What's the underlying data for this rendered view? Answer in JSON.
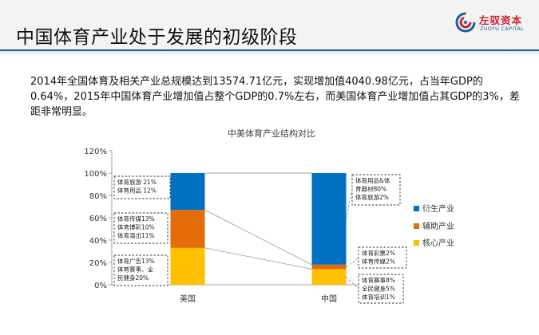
{
  "slide": {
    "title": "中国体育产业处于发展的初级阶段",
    "paragraph": "2014年全国体育及相关产业总规模达到13574.71亿元，实现增加值4040.98亿元，占当年GDP的0.64%，2015年中国体育产业增加值占整个GDP的0.7%左右，而美国体育产业增加值占其GDP的3%，差距非常明显。"
  },
  "logo": {
    "name_cn": "左驭资本",
    "name_en": "ZUOYU CAPITAL"
  },
  "chart_data": {
    "type": "bar",
    "stacked": true,
    "title": "中美体育产业结构对比",
    "categories": [
      "美国",
      "中国"
    ],
    "series": [
      {
        "name": "核心产业",
        "color": "#ffc000",
        "values": [
          33,
          14
        ]
      },
      {
        "name": "辅助产业",
        "color": "#e36c09",
        "values": [
          34,
          4
        ]
      },
      {
        "name": "衍生产业",
        "color": "#0070c0",
        "values": [
          33,
          82
        ]
      }
    ],
    "legend_order": [
      "衍生产业",
      "辅助产业",
      "核心产业"
    ],
    "legend_position": "right",
    "ylim": [
      0,
      120
    ],
    "yticks": [
      0,
      20,
      40,
      60,
      80,
      100,
      120
    ],
    "ytick_labels": [
      "0%",
      "20%",
      "40%",
      "60%",
      "80%",
      "100%",
      "120%"
    ],
    "grid": false,
    "annotations": [
      {
        "category": "美国",
        "series": "衍生产业",
        "lines": [
          "体育旅游 21%",
          "体育用品 12%"
        ]
      },
      {
        "category": "美国",
        "series": "辅助产业",
        "lines": [
          "体育传媒13%",
          "体育博彩10%",
          "体育演出11%"
        ]
      },
      {
        "category": "美国",
        "series": "核心产业",
        "lines": [
          "体育广告13%",
          "体育赛事、全",
          "民健身20%"
        ]
      },
      {
        "category": "中国",
        "series": "衍生产业",
        "lines": [
          "体育用品&体",
          "育器材80%",
          "体育旅游2%"
        ]
      },
      {
        "category": "中国",
        "series": "辅助产业",
        "lines": [
          "体育彩票2%",
          "体育传媒2%"
        ]
      },
      {
        "category": "中国",
        "series": "核心产业",
        "lines": [
          "体育赛事8%",
          "全民健身5%",
          "体育培训1%"
        ]
      }
    ]
  }
}
